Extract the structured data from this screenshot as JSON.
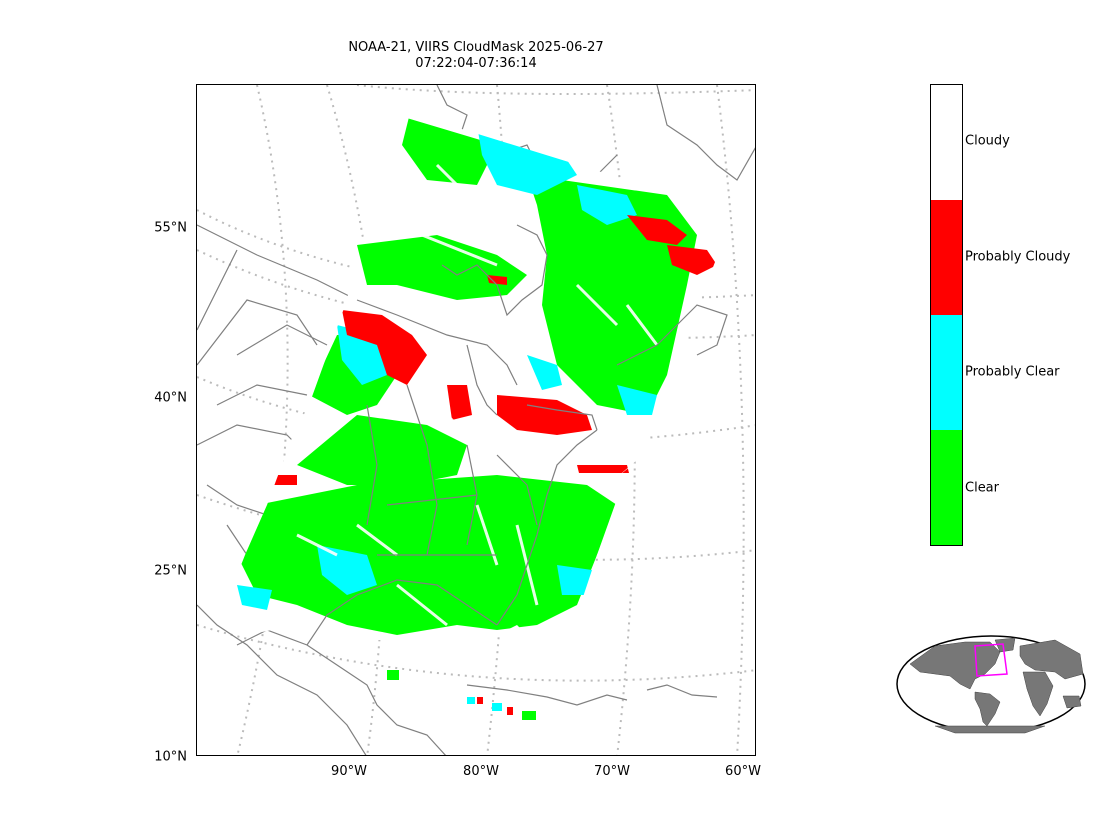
{
  "title": {
    "line1": "NOAA-21, VIIRS CloudMask 2025-06-27",
    "line2": "07:22:04-07:36:14"
  },
  "lat_ticks": [
    "55°N",
    "40°N",
    "25°N",
    "10°N"
  ],
  "lon_ticks": [
    "90°W",
    "80°W",
    "70°W",
    "60°W"
  ],
  "legend": {
    "categories": [
      {
        "label": "Cloudy",
        "color": "#ffffff"
      },
      {
        "label": "Probably Cloudy",
        "color": "#ff0000"
      },
      {
        "label": "Probably Clear",
        "color": "#00ffff"
      },
      {
        "label": "Clear",
        "color": "#00ff00"
      }
    ]
  },
  "colors": {
    "coastline": "#808080",
    "graticule": "#bbbbbb",
    "globe_land": "#777777",
    "globe_highlight": "#ff00ff"
  }
}
